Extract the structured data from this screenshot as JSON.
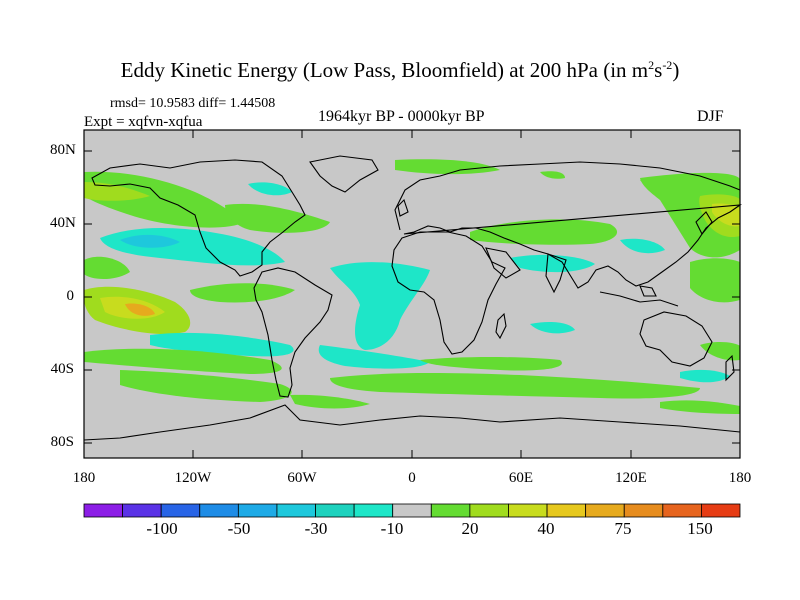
{
  "title": {
    "main": "Eddy Kinetic Energy (Low Pass, Bloomfield) at 200 hPa (in m",
    "exp1": "2",
    "mid": "s",
    "exp2": "-2",
    "end": ")"
  },
  "stats": "rmsd= 10.9583 diff= 1.44508",
  "experiment": "Expt = xqfvn-xqfua",
  "period": "1964kyr BP - 0000kyr BP",
  "season": "DJF",
  "lat_labels": [
    "80N",
    "40N",
    "0",
    "40S",
    "80S"
  ],
  "lon_labels": [
    "180",
    "120W",
    "60W",
    "0",
    "60E",
    "120E",
    "180"
  ],
  "colorbar": {
    "labels": [
      "-100",
      "-50",
      "-30",
      "-10",
      "20",
      "40",
      "75",
      "150"
    ],
    "colors": [
      "#8c1ee6",
      "#5a32e6",
      "#2864e6",
      "#1e8ce6",
      "#1eaae6",
      "#1ec8dc",
      "#1ed2be",
      "#1ee6c8",
      "#c8c8c8",
      "#64dc32",
      "#a0dc1e",
      "#c8dc1e",
      "#e6c81e",
      "#e6aa1e",
      "#e68c1e",
      "#e6641e",
      "#e63c14"
    ]
  },
  "colors": {
    "background": "#c8c8c8",
    "cyan": "#1ee6c8",
    "light_blue": "#1ec8dc",
    "blue": "#1eaae6",
    "green": "#64dc32",
    "yellow_green": "#a0dc1e",
    "yellow": "#c8dc1e",
    "orange": "#e6aa1e",
    "coast": "#000000"
  }
}
